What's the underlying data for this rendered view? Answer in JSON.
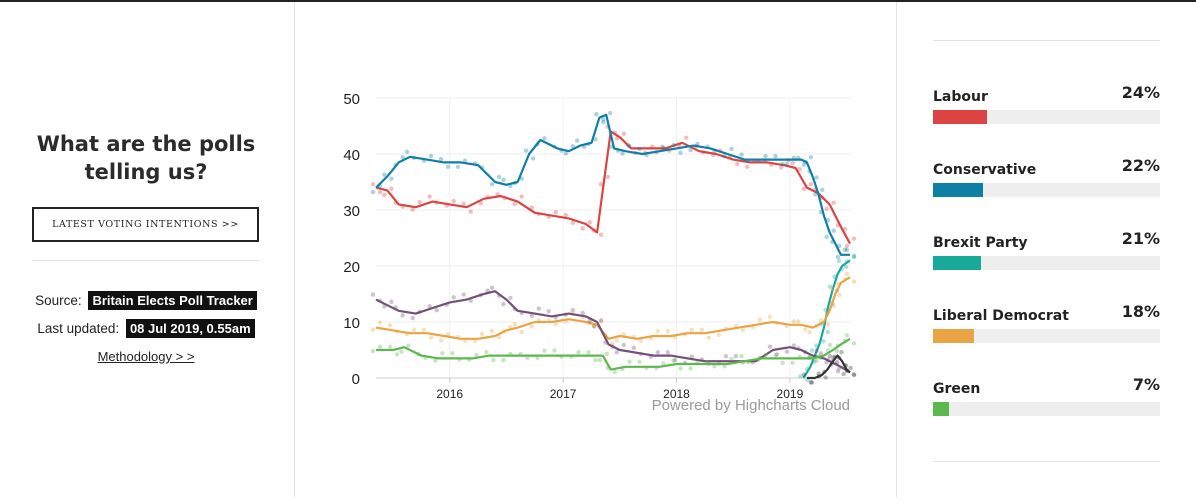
{
  "left": {
    "title_line1": "What are the polls",
    "title_line2": "telling us?",
    "cta_label": "LATEST VOTING INTENTIONS >>",
    "source_label": "Source:",
    "source_value": "Britain Elects Poll Tracker",
    "updated_label": "Last updated:",
    "updated_value": "08 Jul 2019, 0.55am",
    "methodology_link": "Methodology > >"
  },
  "parties": [
    {
      "name": "Labour",
      "pct_label": "24%",
      "value": 24,
      "color": "#dc4343"
    },
    {
      "name": "Conservative",
      "pct_label": "22%",
      "value": 22,
      "color": "#0e7fa6"
    },
    {
      "name": "Brexit Party",
      "pct_label": "21%",
      "value": 21,
      "color": "#18a99a"
    },
    {
      "name": "Liberal Democrat",
      "pct_label": "18%",
      "value": 18,
      "color": "#e9a544"
    },
    {
      "name": "Green",
      "pct_label": "7%",
      "value": 7,
      "color": "#5cb84d"
    }
  ],
  "chart_data": {
    "type": "line",
    "ylim": [
      0,
      50
    ],
    "xlim": [
      2015.35,
      2019.53
    ],
    "y_ticks": [
      "0",
      "10",
      "20",
      "30",
      "40",
      "50"
    ],
    "x_ticks": [
      "2016",
      "2017",
      "2018",
      "2019"
    ],
    "credit": "Powered by Highcharts Cloud",
    "grid": true,
    "legend": "none",
    "series": [
      {
        "color": "#dc4343",
        "x": [
          2015.35,
          2015.45,
          2015.55,
          2015.7,
          2015.85,
          2016.0,
          2016.15,
          2016.3,
          2016.45,
          2016.6,
          2016.75,
          2016.9,
          2017.05,
          2017.2,
          2017.3,
          2017.36,
          2017.42,
          2017.5,
          2017.6,
          2017.75,
          2017.9,
          2018.05,
          2018.2,
          2018.35,
          2018.5,
          2018.65,
          2018.8,
          2018.95,
          2019.05,
          2019.15,
          2019.25,
          2019.35,
          2019.45,
          2019.53
        ],
        "y": [
          34,
          33.5,
          31,
          30.5,
          31.5,
          31,
          30.5,
          32,
          32.5,
          31.5,
          29.5,
          29,
          28.5,
          27.5,
          26,
          35,
          44,
          43,
          41,
          41,
          41,
          42,
          40.5,
          40,
          39,
          38.5,
          38.5,
          38,
          37.5,
          34,
          33,
          31,
          27,
          24
        ]
      },
      {
        "color": "#0e7fa6",
        "x": [
          2015.35,
          2015.45,
          2015.55,
          2015.65,
          2015.8,
          2015.95,
          2016.1,
          2016.25,
          2016.4,
          2016.5,
          2016.6,
          2016.7,
          2016.8,
          2016.95,
          2017.05,
          2017.15,
          2017.25,
          2017.32,
          2017.38,
          2017.45,
          2017.55,
          2017.7,
          2017.85,
          2018.0,
          2018.15,
          2018.3,
          2018.45,
          2018.6,
          2018.75,
          2018.9,
          2019.0,
          2019.1,
          2019.15,
          2019.2,
          2019.25,
          2019.3,
          2019.35,
          2019.4,
          2019.45,
          2019.53
        ],
        "y": [
          34,
          36,
          38.5,
          39.5,
          39,
          38.5,
          38.5,
          38,
          35,
          34.5,
          35,
          40,
          42.5,
          41,
          40.5,
          41.5,
          42,
          46.5,
          47,
          41,
          40.5,
          40,
          40.5,
          41,
          41.5,
          41,
          40,
          39,
          39,
          39,
          39,
          39,
          38.5,
          36,
          33,
          29,
          26,
          24,
          22,
          22
        ]
      },
      {
        "color": "#18a99a",
        "x": [
          2019.12,
          2019.18,
          2019.22,
          2019.26,
          2019.3,
          2019.34,
          2019.38,
          2019.42,
          2019.46,
          2019.53
        ],
        "y": [
          0,
          2,
          4,
          6,
          9,
          13,
          16,
          18.5,
          20,
          21
        ]
      },
      {
        "color": "#e9a544",
        "x": [
          2015.35,
          2015.5,
          2015.65,
          2015.8,
          2015.95,
          2016.1,
          2016.25,
          2016.4,
          2016.5,
          2016.6,
          2016.75,
          2016.9,
          2017.05,
          2017.2,
          2017.3,
          2017.4,
          2017.5,
          2017.65,
          2017.8,
          2017.95,
          2018.1,
          2018.25,
          2018.4,
          2018.55,
          2018.7,
          2018.85,
          2019.0,
          2019.1,
          2019.2,
          2019.3,
          2019.35,
          2019.4,
          2019.45,
          2019.53
        ],
        "y": [
          9,
          8.5,
          8,
          8,
          7.5,
          7,
          7,
          7.5,
          8.5,
          9,
          10,
          10,
          10.5,
          10,
          9.5,
          7,
          7.5,
          7,
          7.5,
          7.5,
          8,
          8,
          8.5,
          9,
          9.5,
          10,
          9.5,
          9.5,
          9,
          10,
          12,
          15,
          17,
          18
        ]
      },
      {
        "color": "#725078",
        "x": [
          2015.35,
          2015.45,
          2015.55,
          2015.7,
          2015.85,
          2016.0,
          2016.15,
          2016.3,
          2016.4,
          2016.5,
          2016.6,
          2016.75,
          2016.9,
          2017.05,
          2017.2,
          2017.3,
          2017.4,
          2017.5,
          2017.65,
          2017.8,
          2017.95,
          2018.1,
          2018.25,
          2018.4,
          2018.55,
          2018.7,
          2018.85,
          2019.0,
          2019.1,
          2019.2,
          2019.3,
          2019.35,
          2019.4,
          2019.45,
          2019.53
        ],
        "y": [
          14,
          13,
          12,
          11.5,
          12.5,
          13.5,
          14,
          15,
          15.5,
          14,
          12,
          11.5,
          11,
          11.5,
          11,
          10,
          6,
          5,
          4.5,
          4,
          4,
          3.5,
          3,
          3,
          3,
          3,
          5,
          5.5,
          5,
          4,
          3.5,
          3,
          2.5,
          2,
          1
        ]
      },
      {
        "color": "#5cb84d",
        "x": [
          2015.35,
          2015.5,
          2015.6,
          2015.75,
          2015.9,
          2016.05,
          2016.2,
          2016.35,
          2016.5,
          2016.65,
          2016.8,
          2016.95,
          2017.1,
          2017.25,
          2017.35,
          2017.42,
          2017.55,
          2017.7,
          2017.85,
          2018.0,
          2018.15,
          2018.3,
          2018.45,
          2018.6,
          2018.75,
          2018.9,
          2019.05,
          2019.2,
          2019.3,
          2019.38,
          2019.45,
          2019.53
        ],
        "y": [
          5,
          5,
          5.5,
          4,
          3.5,
          3.5,
          3.5,
          4,
          4,
          4,
          4,
          4,
          4,
          4,
          4,
          1.5,
          2,
          2,
          2,
          2.5,
          2.5,
          2.5,
          2.5,
          3,
          3.5,
          3.5,
          3.5,
          3.5,
          4,
          5,
          6,
          7
        ]
      },
      {
        "color": "#333333",
        "x": [
          2019.15,
          2019.22,
          2019.28,
          2019.33,
          2019.38,
          2019.42,
          2019.46,
          2019.5,
          2019.53
        ],
        "y": [
          0,
          0,
          0.5,
          1.5,
          3,
          4,
          3,
          1.5,
          1
        ]
      }
    ]
  }
}
